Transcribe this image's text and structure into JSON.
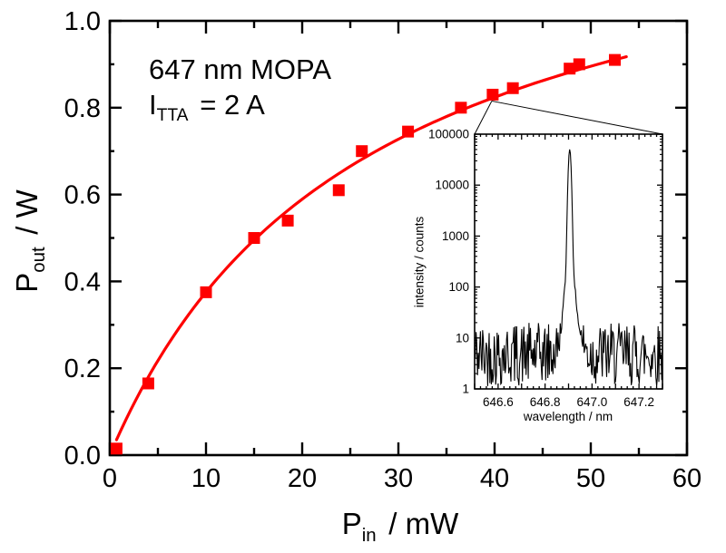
{
  "figure": {
    "background": "#ffffff",
    "accent_color": "#fe0000",
    "text_color": "#000000"
  },
  "chart_data": [
    {
      "id": "main",
      "type": "scatter",
      "xlabel": {
        "base": "P",
        "sub": "in",
        "rest": " / mW"
      },
      "ylabel": {
        "base": "P",
        "sub": "out",
        "rest": " / W"
      },
      "annotation": {
        "line1": "647 nm MOPA",
        "line2_base": "I",
        "line2_sub": "TTA",
        "line2_rest": " = 2 A"
      },
      "xlim": [
        0,
        60
      ],
      "ylim": [
        0.0,
        1.0
      ],
      "x_major_values": [
        0,
        10,
        20,
        30,
        40,
        50,
        60
      ],
      "x_major_labels": [
        "0",
        "10",
        "20",
        "30",
        "40",
        "50",
        "60"
      ],
      "x_minor_step": 5,
      "y_major_values": [
        0.0,
        0.2,
        0.4,
        0.6,
        0.8,
        1.0
      ],
      "y_major_labels": [
        "0.0",
        "0.2",
        "0.4",
        "0.6",
        "0.8",
        "1.0"
      ],
      "y_minor_step": 0.1,
      "grid": false,
      "legend": "none",
      "marker": {
        "shape": "square",
        "color": "#fe0000",
        "size": 13
      },
      "points": [
        [
          0.7,
          0.015
        ],
        [
          4.0,
          0.165
        ],
        [
          10.0,
          0.375
        ],
        [
          15.0,
          0.5
        ],
        [
          18.5,
          0.54
        ],
        [
          23.8,
          0.61
        ],
        [
          26.2,
          0.7
        ],
        [
          31.0,
          0.745
        ],
        [
          36.5,
          0.8
        ],
        [
          39.8,
          0.83
        ],
        [
          41.9,
          0.845
        ],
        [
          47.8,
          0.89
        ],
        [
          48.8,
          0.9
        ],
        [
          52.5,
          0.91
        ]
      ],
      "fit_curve": {
        "formula": "y = a*x/(x+b)",
        "a": 1.37,
        "b": 26.5,
        "x_start": 0.7,
        "x_end": 53.7,
        "color": "#fe0000"
      }
    },
    {
      "id": "inset-spectrum",
      "type": "line",
      "xlabel": "wavelength / nm",
      "ylabel": "intensity / counts",
      "xlim": [
        646.5,
        647.3
      ],
      "ylim": [
        1,
        100000
      ],
      "yscale": "log",
      "x_tick_values": [
        646.6,
        646.8,
        647.0,
        647.2
      ],
      "x_tick_labels": [
        "646.6",
        "646.8",
        "647.0",
        "647.2"
      ],
      "x_major_step": 0.1,
      "x_minor_step": 0.025,
      "y_tick_values": [
        1,
        10,
        100,
        1000,
        10000,
        100000
      ],
      "y_tick_labels": [
        "1",
        "10",
        "100",
        "1000",
        "10000",
        "100000"
      ],
      "line_color": "#000000",
      "spectrum": {
        "peak_wavelength_nm": 646.9,
        "peak_counts": 50000,
        "noise_floor_counts_range": [
          1.1,
          20
        ],
        "noise_log10_range": [
          0.05,
          1.3
        ],
        "n_points": 260,
        "seed": 42,
        "components": [
          {
            "amp": 50000,
            "center": 646.905,
            "sigma": 0.0065
          },
          {
            "amp": 300,
            "center": 646.905,
            "sigma": 0.018
          },
          {
            "amp": 25,
            "center": 646.912,
            "sigma": 0.035
          }
        ]
      }
    }
  ],
  "zoom_link": {
    "from_point_index": 9,
    "targets": "inset-top-corners"
  }
}
